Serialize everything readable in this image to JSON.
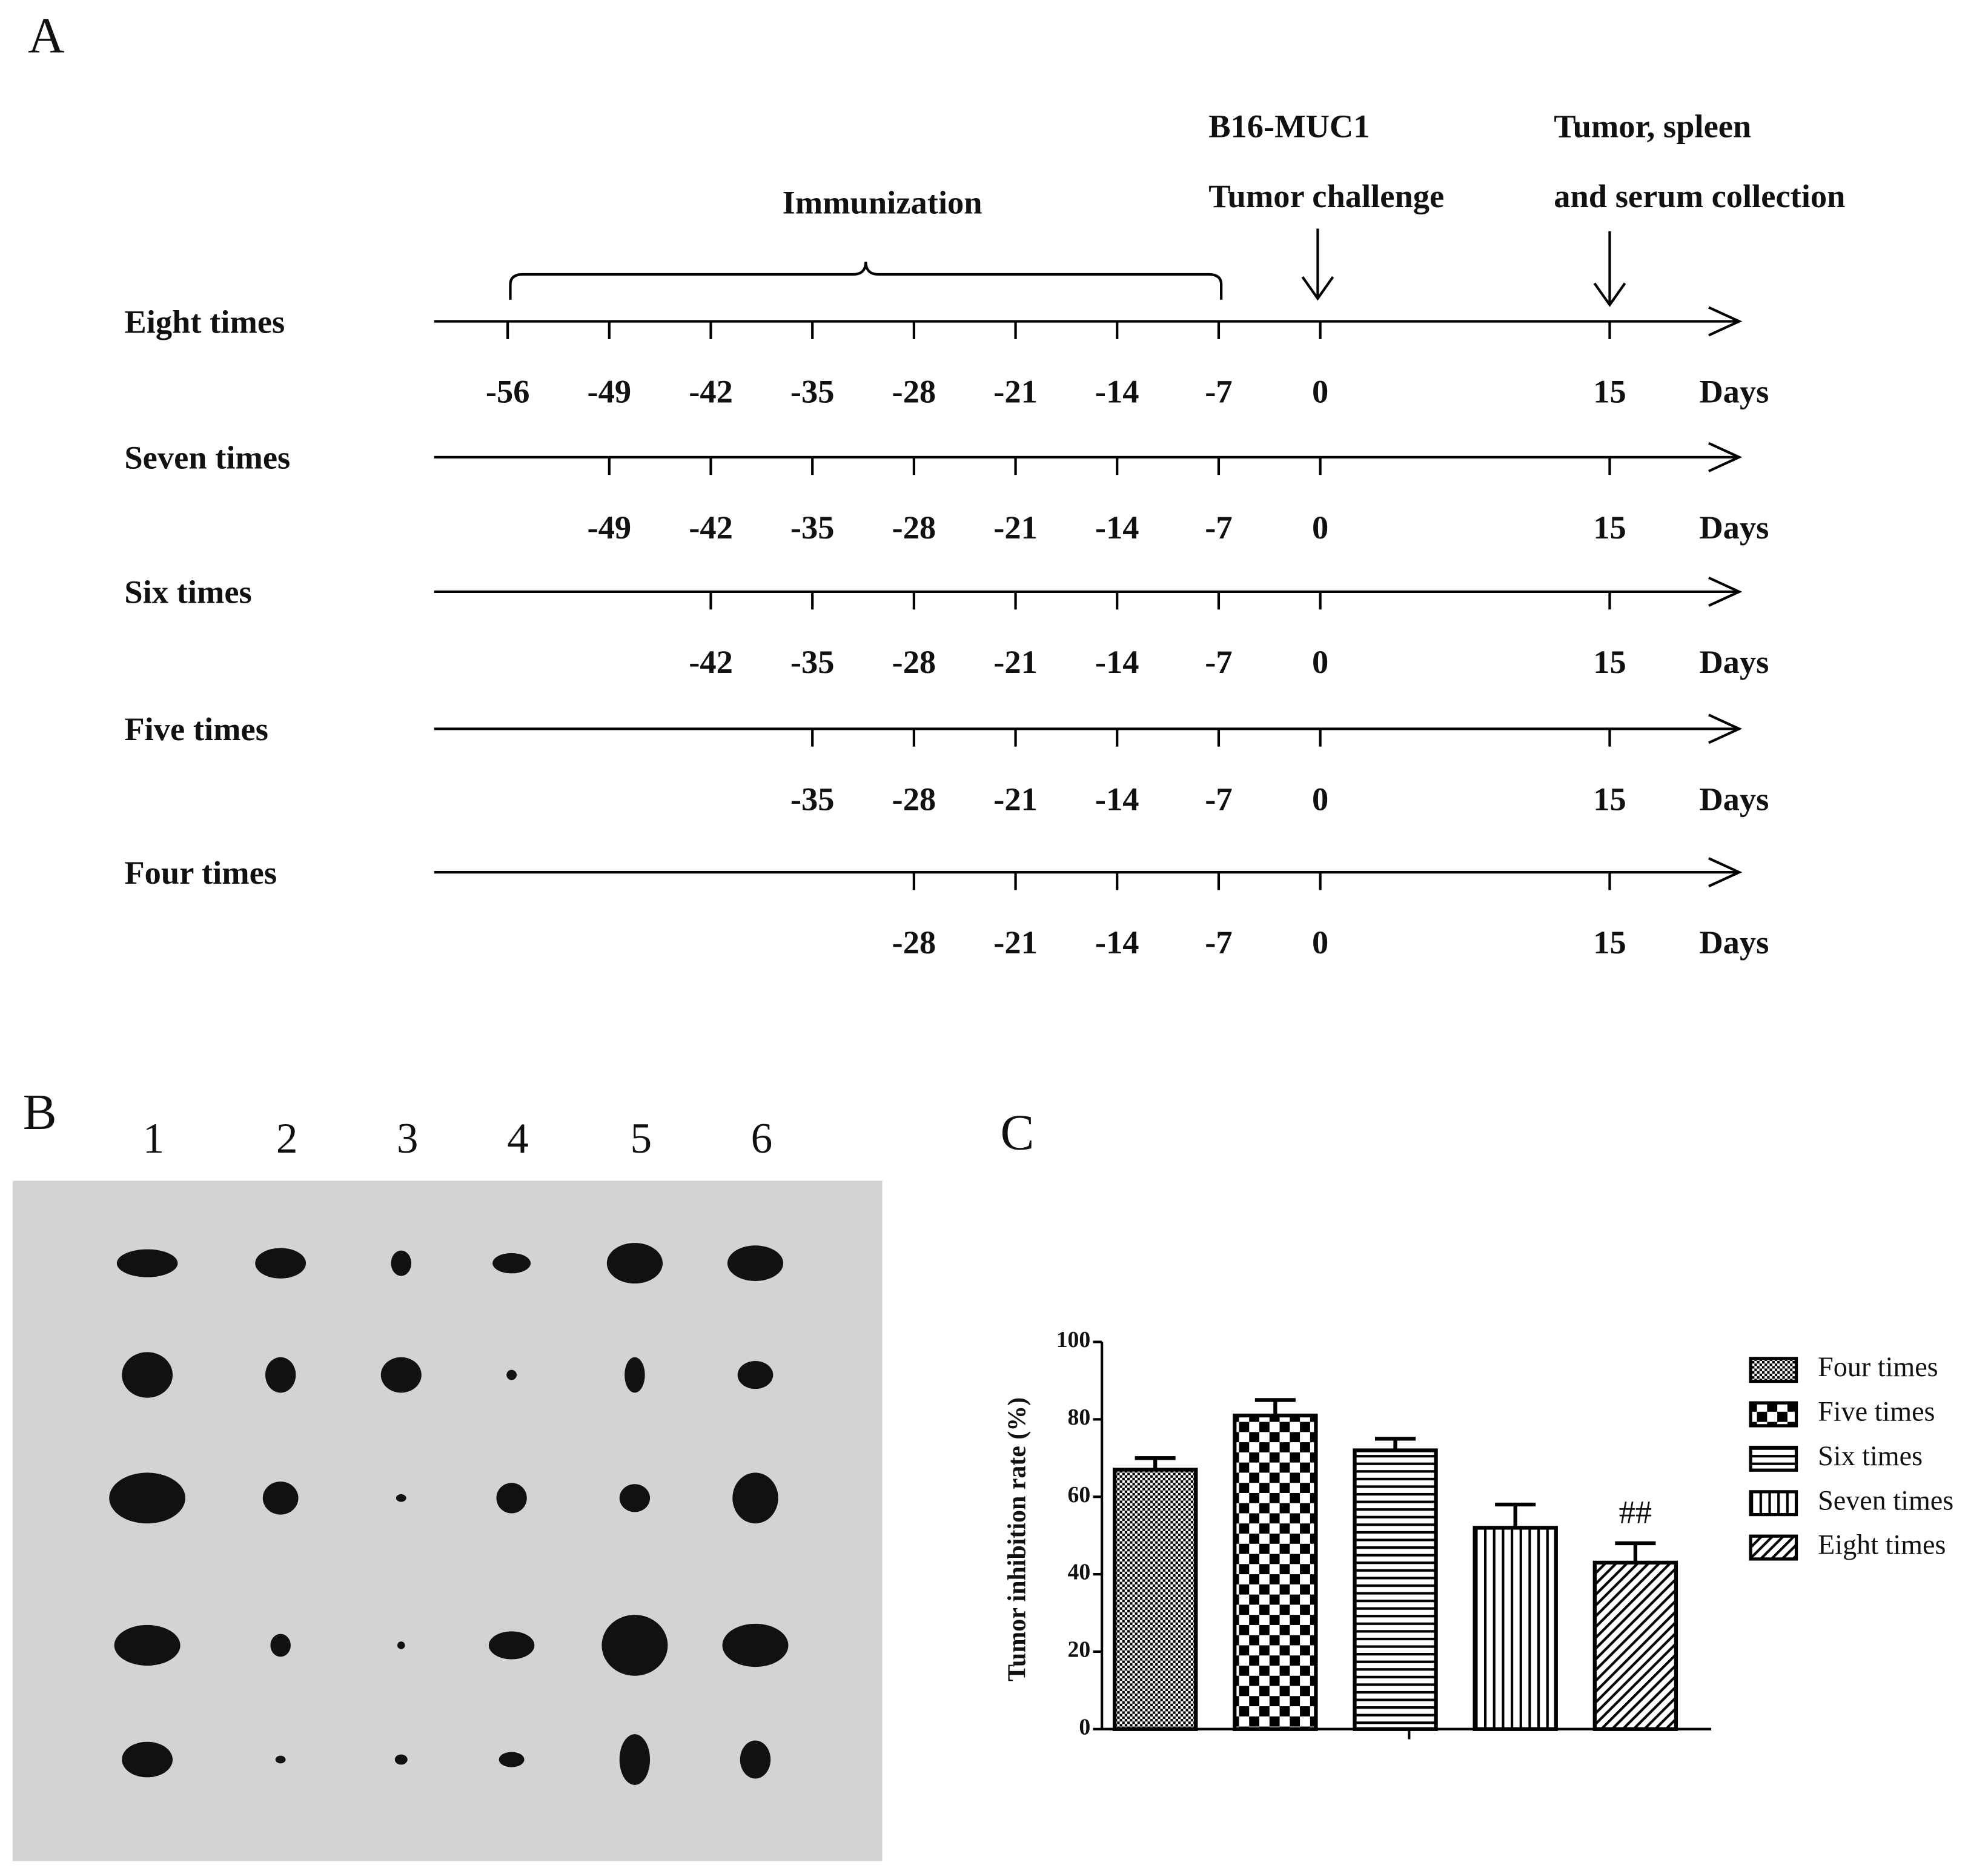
{
  "panel_a": {
    "label": "A",
    "annotations": {
      "immunization": "Immunization",
      "challenge_1": "B16-MUC1",
      "challenge_2": "Tumor challenge",
      "collection_1": "Tumor, spleen",
      "collection_2": "and serum collection"
    },
    "timelines": [
      {
        "name": "Eight times",
        "days": [
          -56,
          -49,
          -42,
          -35,
          -28,
          -21,
          -14,
          -7,
          0,
          15
        ],
        "unit": "Days"
      },
      {
        "name": "Seven times",
        "days": [
          -49,
          -42,
          -35,
          -28,
          -21,
          -14,
          -7,
          0,
          15
        ],
        "unit": "Days"
      },
      {
        "name": "Six times",
        "days": [
          -42,
          -35,
          -28,
          -21,
          -14,
          -7,
          0,
          15
        ],
        "unit": "Days"
      },
      {
        "name": "Five times",
        "days": [
          -35,
          -28,
          -21,
          -14,
          -7,
          0,
          15
        ],
        "unit": "Days"
      },
      {
        "name": "Four times",
        "days": [
          -28,
          -21,
          -14,
          -7,
          0,
          15
        ],
        "unit": "Days"
      }
    ]
  },
  "panel_b": {
    "label": "B",
    "columns": [
      "1",
      "2",
      "3",
      "4",
      "5",
      "6"
    ]
  },
  "chart_data": {
    "label": "C",
    "type": "bar",
    "ylabel": "Tumor inhibition rate (%)",
    "categories": [
      "Four times",
      "Five times",
      "Six times",
      "Seven times",
      "Eight times"
    ],
    "values": [
      67,
      81,
      72,
      52,
      43
    ],
    "errors": [
      3,
      4,
      3,
      6,
      5
    ],
    "patterns": [
      "fine-check",
      "checker",
      "horizontal",
      "vertical",
      "diagonal"
    ],
    "color": "#000000",
    "ylim": [
      0,
      100
    ],
    "yticks": [
      0,
      20,
      40,
      60,
      80,
      100
    ],
    "annotations": [
      {
        "text": "##",
        "category": "Eight times"
      }
    ],
    "legend": "right"
  }
}
